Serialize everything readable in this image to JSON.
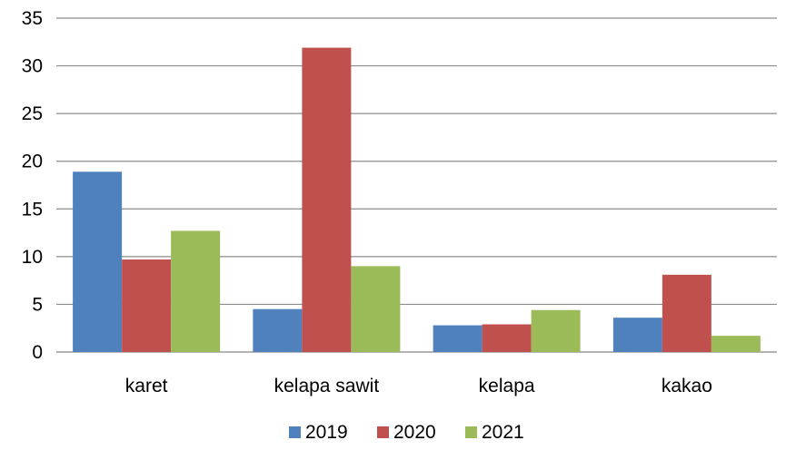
{
  "chart_data": {
    "type": "bar",
    "categories": [
      "karet",
      "kelapa sawit",
      "kelapa",
      "kakao"
    ],
    "series": [
      {
        "name": "2019",
        "color": "#4F81BD",
        "values": [
          18.9,
          4.5,
          2.8,
          3.6
        ]
      },
      {
        "name": "2020",
        "color": "#C0504D",
        "values": [
          9.7,
          31.9,
          2.9,
          8.1
        ]
      },
      {
        "name": "2021",
        "color": "#9BBB59",
        "values": [
          12.7,
          9.0,
          4.4,
          1.7
        ]
      }
    ],
    "ylim": [
      0,
      35
    ],
    "yticks": [
      "0",
      "5",
      "10",
      "15",
      "20",
      "25",
      "30",
      "35"
    ],
    "grid": true,
    "legend_position": "bottom"
  }
}
